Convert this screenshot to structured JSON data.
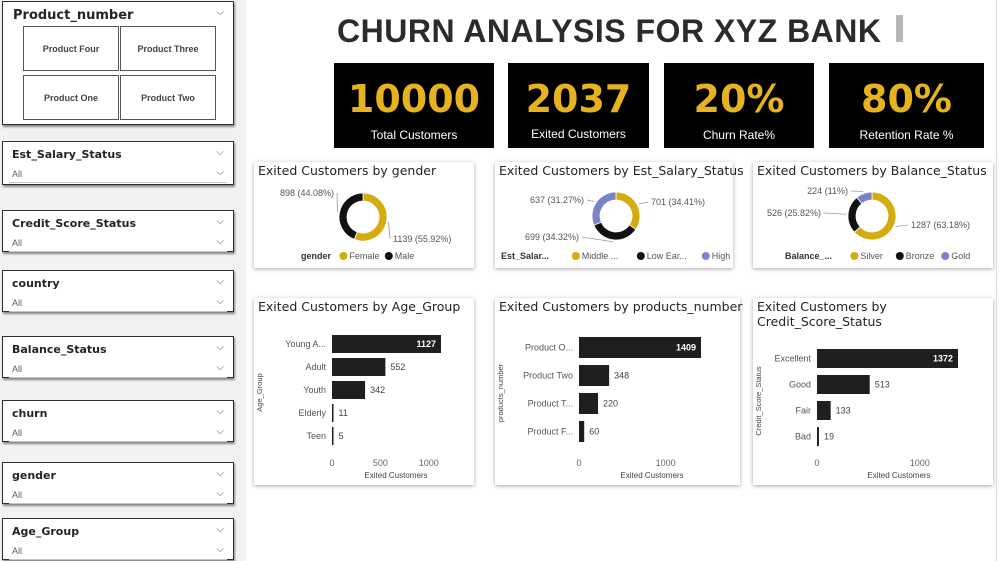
{
  "title": "CHURN ANALYSIS FOR XYZ BANK",
  "product_slicer": {
    "title": "Product_number",
    "tiles": [
      "Product Four",
      "Product Three",
      "Product One",
      "Product Two"
    ]
  },
  "slicers": [
    {
      "title": "Est_Salary_Status",
      "value": "All"
    },
    {
      "title": "Credit_Score_Status",
      "value": "All"
    },
    {
      "title": "country",
      "value": "All"
    },
    {
      "title": "Balance_Status",
      "value": "All"
    },
    {
      "title": "churn",
      "value": "All"
    },
    {
      "title": "gender",
      "value": "All"
    },
    {
      "title": "Age_Group",
      "value": "All"
    }
  ],
  "kpis": [
    {
      "value": "10000",
      "label": "Total Customers"
    },
    {
      "value": "2037",
      "label": "Exited Customers"
    },
    {
      "value": "20%",
      "label": "Churn Rate%"
    },
    {
      "value": "80%",
      "label": "Retention Rate %"
    }
  ],
  "colors": {
    "gold": "#d4ac0d",
    "black": "#111111",
    "purple": "#7b83c9",
    "kpi_text": "#e6b31e"
  },
  "icons": {
    "chevron": "chevron-down-icon"
  },
  "chart_data": [
    {
      "type": "pie",
      "title": "Exited Customers by gender",
      "legend_title": "gender",
      "categories": [
        "Female",
        "Male"
      ],
      "values": [
        1139,
        898
      ],
      "labels": [
        "1139 (55.92%)",
        "898 (44.08%)"
      ],
      "colors": [
        "#d4ac0d",
        "#111111"
      ]
    },
    {
      "type": "pie",
      "title": "Exited Customers by Est_Salary_Status",
      "legend_title": "Est_Salar...",
      "categories": [
        "Middle ...",
        "Low Ear...",
        "High Ear..."
      ],
      "values": [
        701,
        699,
        637
      ],
      "labels": [
        "701 (34.41%)",
        "699 (34.32%)",
        "637 (31.27%)"
      ],
      "colors": [
        "#d4ac0d",
        "#111111",
        "#7b83c9"
      ]
    },
    {
      "type": "pie",
      "title": "Exited Customers by Balance_Status",
      "legend_title": "Balance_...",
      "categories": [
        "Silver",
        "Bronze",
        "Gold"
      ],
      "values": [
        1287,
        526,
        224
      ],
      "labels": [
        "1287 (63.18%)",
        "526 (25.82%)",
        "224 (11%)"
      ],
      "colors": [
        "#d4ac0d",
        "#111111",
        "#7b83c9"
      ]
    },
    {
      "type": "bar",
      "title": "Exited Customers by Age_Group",
      "xlabel": "Exited Customers",
      "ylabel": "Age_Group",
      "categories": [
        "Young A...",
        "Adult",
        "Youth",
        "Elderly",
        "Teen"
      ],
      "values": [
        1127,
        552,
        342,
        11,
        5
      ],
      "ticks": [
        0,
        500,
        1000
      ],
      "xlim": [
        0,
        1127
      ]
    },
    {
      "type": "bar",
      "title": "Exited Customers by products_number",
      "xlabel": "Exited Customers",
      "ylabel": "products_number",
      "categories": [
        "Product O...",
        "Product Two",
        "Product T...",
        "Product F..."
      ],
      "values": [
        1409,
        348,
        220,
        60
      ],
      "ticks": [
        0,
        1000
      ],
      "xlim": [
        0,
        1409
      ]
    },
    {
      "type": "bar",
      "title": "Exited Customers by Credit_Score_Status",
      "xlabel": "Exited Customers",
      "ylabel": "Credit_Score_Status",
      "categories": [
        "Excellent",
        "Good",
        "Fair",
        "Bad"
      ],
      "values": [
        1372,
        513,
        133,
        19
      ],
      "ticks": [
        0,
        1000
      ],
      "xlim": [
        0,
        1372
      ]
    }
  ]
}
